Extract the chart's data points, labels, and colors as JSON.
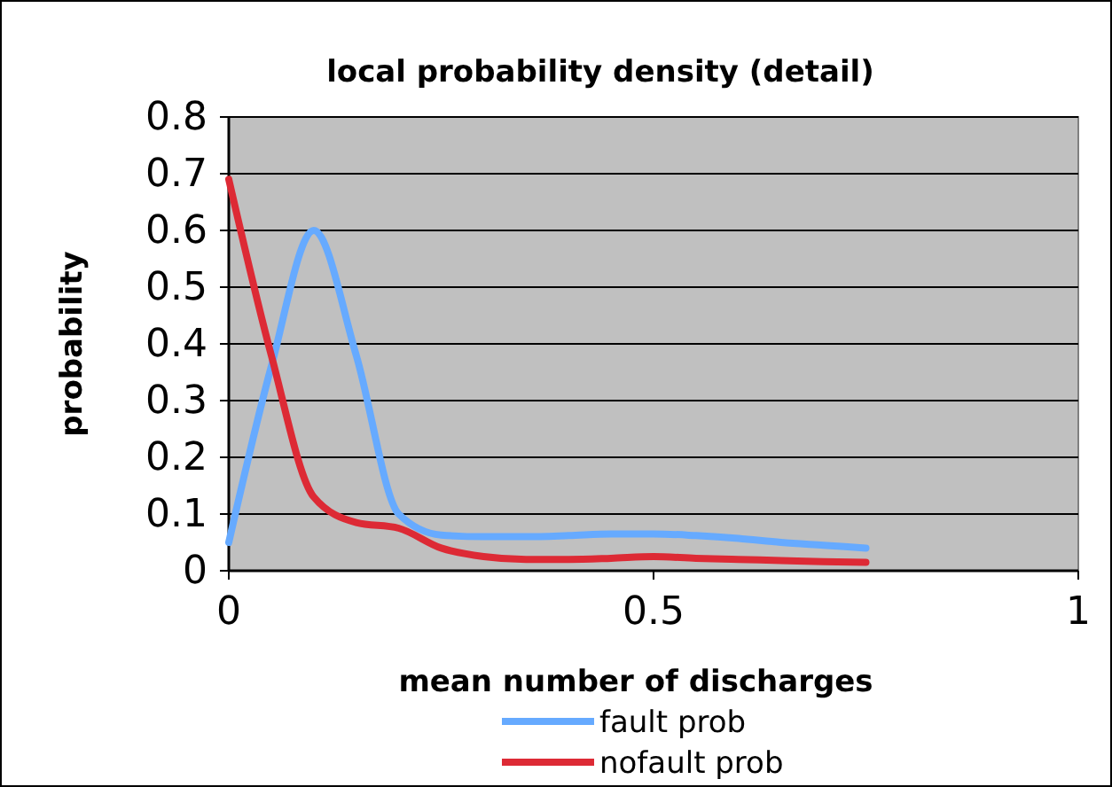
{
  "chart_data": {
    "type": "line",
    "title": "local probability density (detail)",
    "xlabel": "mean number of discharges",
    "ylabel": "probability",
    "x": [
      0,
      0.05,
      0.1,
      0.15,
      0.2,
      0.25,
      0.3,
      0.35,
      0.4,
      0.45,
      0.5,
      0.55,
      0.6,
      0.65,
      0.7,
      0.75
    ],
    "series": [
      {
        "name": "fault prob",
        "color": "#66aaff",
        "values": [
          0.05,
          0.36,
          0.6,
          0.38,
          0.1,
          0.063,
          0.06,
          0.06,
          0.062,
          0.065,
          0.065,
          0.062,
          0.057,
          0.05,
          0.045,
          0.04
        ]
      },
      {
        "name": "nofault prob",
        "color": "#dd2a35",
        "values": [
          0.69,
          0.38,
          0.13,
          0.085,
          0.075,
          0.04,
          0.025,
          0.02,
          0.02,
          0.022,
          0.025,
          0.022,
          0.02,
          0.018,
          0.016,
          0.015
        ]
      }
    ],
    "xlim": [
      0,
      1
    ],
    "xticks": [
      0,
      0.5,
      1
    ],
    "ylim": [
      0,
      0.8
    ],
    "yticks": [
      0,
      0.1,
      0.2,
      0.3,
      0.4,
      0.5,
      0.6,
      0.7,
      0.8
    ],
    "grid": "y",
    "legend": "bottom",
    "marker": "none",
    "line_style": "solid"
  }
}
